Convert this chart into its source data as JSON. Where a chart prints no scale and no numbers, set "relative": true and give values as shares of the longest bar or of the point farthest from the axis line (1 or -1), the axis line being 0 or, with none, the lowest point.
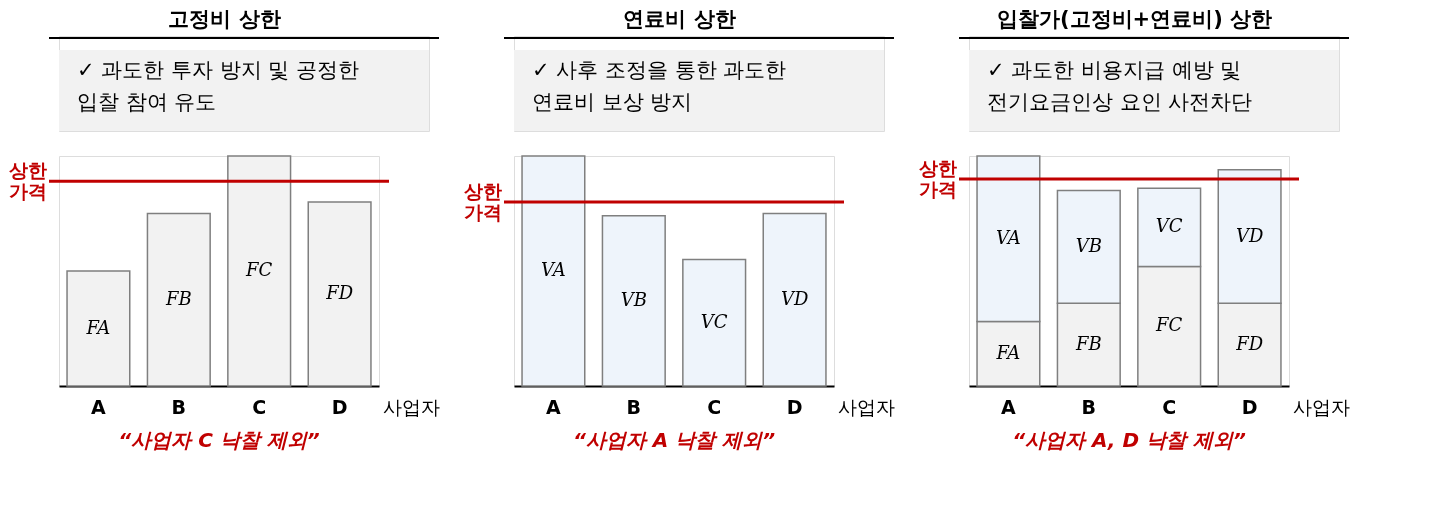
{
  "chart_data": [
    {
      "type": "bar",
      "title": "고정비 상한",
      "subtitle": "✓ 과도한 투자 방지 및  공정한\n입찰 참여 유도",
      "xlabel": "사업자",
      "relative": true,
      "tick_labels": "x",
      "categories": [
        "A",
        "B",
        "C",
        "D"
      ],
      "series": [
        {
          "color": "#f2f2f2",
          "values": [
            0.5,
            0.75,
            1,
            0.8
          ]
        }
      ],
      "ref_lines": [
        {
          "axis": "y",
          "value": 0.89,
          "label": "상한\n가격",
          "color": "#c00000"
        }
      ],
      "annotations": [
        "FA",
        "FB",
        "FC",
        "FD",
        "“사업자 C 낙찰 제외”"
      ]
    },
    {
      "type": "bar",
      "title": "연료비 상한",
      "subtitle": "✓ 사후 조정을 통한 과도한\n연료비 보상 방지",
      "xlabel": "사업자",
      "relative": true,
      "tick_labels": "x",
      "categories": [
        "A",
        "B",
        "C",
        "D"
      ],
      "series": [
        {
          "color": "#eef4fb",
          "values": [
            1,
            0.74,
            0.55,
            0.75
          ]
        }
      ],
      "ref_lines": [
        {
          "axis": "y",
          "value": 0.8,
          "label": "상한\n가격",
          "color": "#c00000"
        }
      ],
      "annotations": [
        "VA",
        "VB",
        "VC",
        "VD",
        "“사업자 A 낙찰 제외”"
      ]
    },
    {
      "type": "bar",
      "title": "입찰가(고정비+연료비) 상한",
      "subtitle": "✓ 과도한 비용지급 예방 및\n전기요금인상 요인 사전차단",
      "xlabel": "사업자",
      "relative": true,
      "stacked": true,
      "tick_labels": "x",
      "categories": [
        "A",
        "B",
        "C",
        "D"
      ],
      "series": [
        {
          "color": "#f2f2f2",
          "values": [
            0.28,
            0.36,
            0.52,
            0.36
          ]
        },
        {
          "color": "#eef4fb",
          "values": [
            0.72,
            0.49,
            0.34,
            0.58
          ]
        }
      ],
      "ref_lines": [
        {
          "axis": "y",
          "value": 0.9,
          "label": "상한\n가격",
          "color": "#c00000"
        }
      ],
      "annotations": [
        "FA",
        "FB",
        "FC",
        "FD",
        "VA",
        "VB",
        "VC",
        "VD",
        "“사업자 A, D 낙찰 제외”"
      ]
    }
  ]
}
